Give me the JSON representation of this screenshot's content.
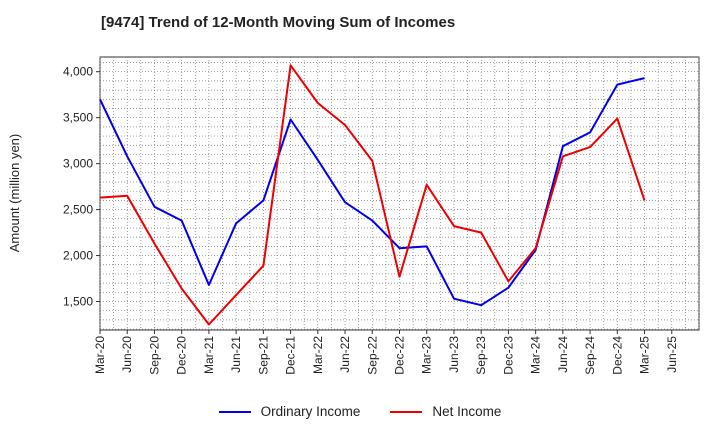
{
  "chart_data": {
    "type": "line",
    "title": "[9474]  Trend of 12-Month Moving Sum of Incomes",
    "xlabel": "",
    "ylabel": "Amount (million yen)",
    "x": [
      "Mar-20",
      "Jun-20",
      "Sep-20",
      "Dec-20",
      "Mar-21",
      "Jun-21",
      "Sep-21",
      "Dec-21",
      "Mar-22",
      "Jun-22",
      "Sep-22",
      "Dec-22",
      "Mar-23",
      "Jun-23",
      "Sep-23",
      "Dec-23",
      "Mar-24",
      "Jun-24",
      "Sep-24",
      "Dec-24",
      "Mar-25",
      "Jun-25"
    ],
    "yticks": [
      "1,500",
      "2,000",
      "2,500",
      "3,000",
      "3,500",
      "4,000"
    ],
    "ytick_values": [
      1500,
      2000,
      2500,
      3000,
      3500,
      4000
    ],
    "ylim": [
      1190,
      4160
    ],
    "grid": true,
    "legend_position": "bottom",
    "series": [
      {
        "name": "Ordinary Income",
        "color": "#0000ee",
        "values": [
          3700,
          3080,
          2530,
          2380,
          1680,
          2350,
          2600,
          3480,
          3040,
          2580,
          2380,
          2080,
          2100,
          1530,
          1460,
          1650,
          2060,
          3190,
          3340,
          3860,
          3930,
          null
        ]
      },
      {
        "name": "Net Income",
        "color": "#ee0000",
        "values": [
          2630,
          2650,
          2130,
          1640,
          1250,
          1570,
          1890,
          4070,
          3660,
          3420,
          3030,
          1770,
          2770,
          2320,
          2250,
          1720,
          2080,
          3080,
          3180,
          3490,
          2600,
          null
        ]
      }
    ]
  }
}
